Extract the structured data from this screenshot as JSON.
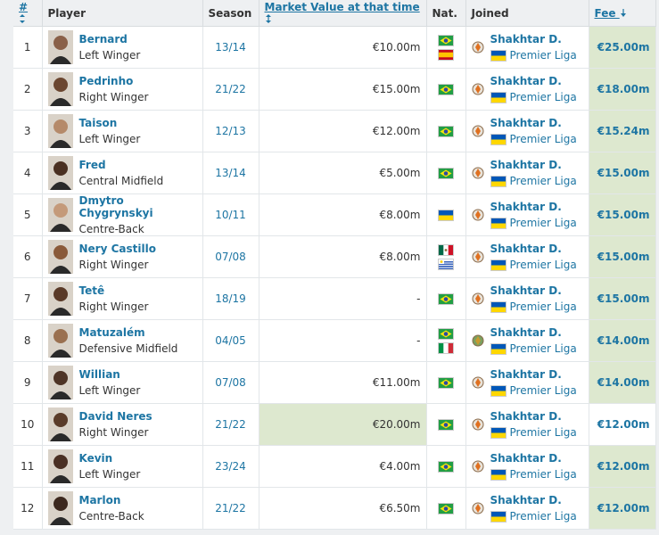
{
  "header": {
    "rank": "#",
    "player": "Player",
    "season": "Season",
    "market_value": "Market Value at that time",
    "nationality": "Nat.",
    "joined": "Joined",
    "fee": "Fee"
  },
  "rows": [
    {
      "rank": 1,
      "name": "Bernard",
      "position": "Left Winger",
      "season": "13/14",
      "market_value": "€10.00m",
      "club": "Shakhtar D.",
      "league": "Premier Liga",
      "fee": "€25.00m"
    },
    {
      "rank": 2,
      "name": "Pedrinho",
      "position": "Right Winger",
      "season": "21/22",
      "market_value": "€15.00m",
      "club": "Shakhtar D.",
      "league": "Premier Liga",
      "fee": "€18.00m"
    },
    {
      "rank": 3,
      "name": "Taison",
      "position": "Left Winger",
      "season": "12/13",
      "market_value": "€12.00m",
      "club": "Shakhtar D.",
      "league": "Premier Liga",
      "fee": "€15.24m"
    },
    {
      "rank": 4,
      "name": "Fred",
      "position": "Central Midfield",
      "season": "13/14",
      "market_value": "€5.00m",
      "club": "Shakhtar D.",
      "league": "Premier Liga",
      "fee": "€15.00m"
    },
    {
      "rank": 5,
      "name": "Dmytro Chygrynskyi",
      "position": "Centre-Back",
      "season": "10/11",
      "market_value": "€8.00m",
      "club": "Shakhtar D.",
      "league": "Premier Liga",
      "fee": "€15.00m"
    },
    {
      "rank": 6,
      "name": "Nery Castillo",
      "position": "Right Winger",
      "season": "07/08",
      "market_value": "€8.00m",
      "club": "Shakhtar D.",
      "league": "Premier Liga",
      "fee": "€15.00m"
    },
    {
      "rank": 7,
      "name": "Tetê",
      "position": "Right Winger",
      "season": "18/19",
      "market_value": "-",
      "club": "Shakhtar D.",
      "league": "Premier Liga",
      "fee": "€15.00m"
    },
    {
      "rank": 8,
      "name": "Matuzalém",
      "position": "Defensive Midfield",
      "season": "04/05",
      "market_value": "-",
      "club": "Shakhtar D.",
      "league": "Premier Liga",
      "fee": "€14.00m"
    },
    {
      "rank": 9,
      "name": "Willian",
      "position": "Left Winger",
      "season": "07/08",
      "market_value": "€11.00m",
      "club": "Shakhtar D.",
      "league": "Premier Liga",
      "fee": "€14.00m"
    },
    {
      "rank": 10,
      "name": "David Neres",
      "position": "Right Winger",
      "season": "21/22",
      "market_value": "€20.00m",
      "club": "Shakhtar D.",
      "league": "Premier Liga",
      "fee": "€12.00m"
    },
    {
      "rank": 11,
      "name": "Kevin",
      "position": "Left Winger",
      "season": "23/24",
      "market_value": "€4.00m",
      "club": "Shakhtar D.",
      "league": "Premier Liga",
      "fee": "€12.00m"
    },
    {
      "rank": 12,
      "name": "Marlon",
      "position": "Centre-Back",
      "season": "21/22",
      "market_value": "€6.50m",
      "club": "Shakhtar D.",
      "league": "Premier Liga",
      "fee": "€12.00m"
    }
  ]
}
